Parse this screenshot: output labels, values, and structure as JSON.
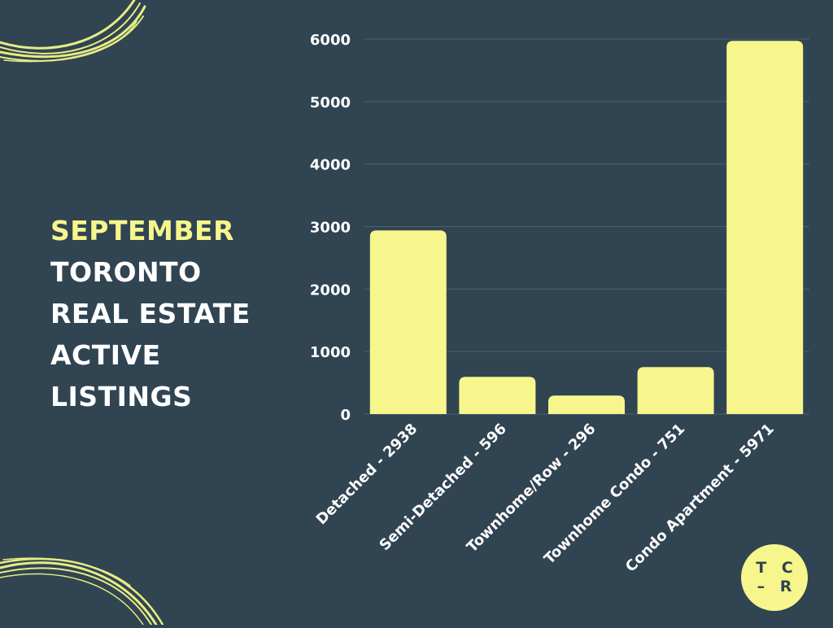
{
  "title": {
    "highlight": "SEPTEMBER",
    "lines": [
      "TORONTO",
      "REAL ESTATE",
      "ACTIVE",
      "LISTINGS"
    ]
  },
  "logo": {
    "line1": "T C",
    "line2": "– R"
  },
  "colors": {
    "background": "#304452",
    "accent": "#f6f68c",
    "text": "#ffffff",
    "grid": "#4c5f6b"
  },
  "chart_data": {
    "type": "bar",
    "categories": [
      "Detached - 2938",
      "Semi-Detached - 596",
      "Townhome/Row - 296",
      "Townhome Condo - 751",
      "Condo Apartment - 5971"
    ],
    "values": [
      2938,
      596,
      296,
      751,
      5971
    ],
    "yticks": [
      0,
      1000,
      2000,
      3000,
      4000,
      5000,
      6000
    ],
    "ylim": [
      0,
      6000
    ],
    "grid": true,
    "bar_color": "#f6f68c"
  }
}
